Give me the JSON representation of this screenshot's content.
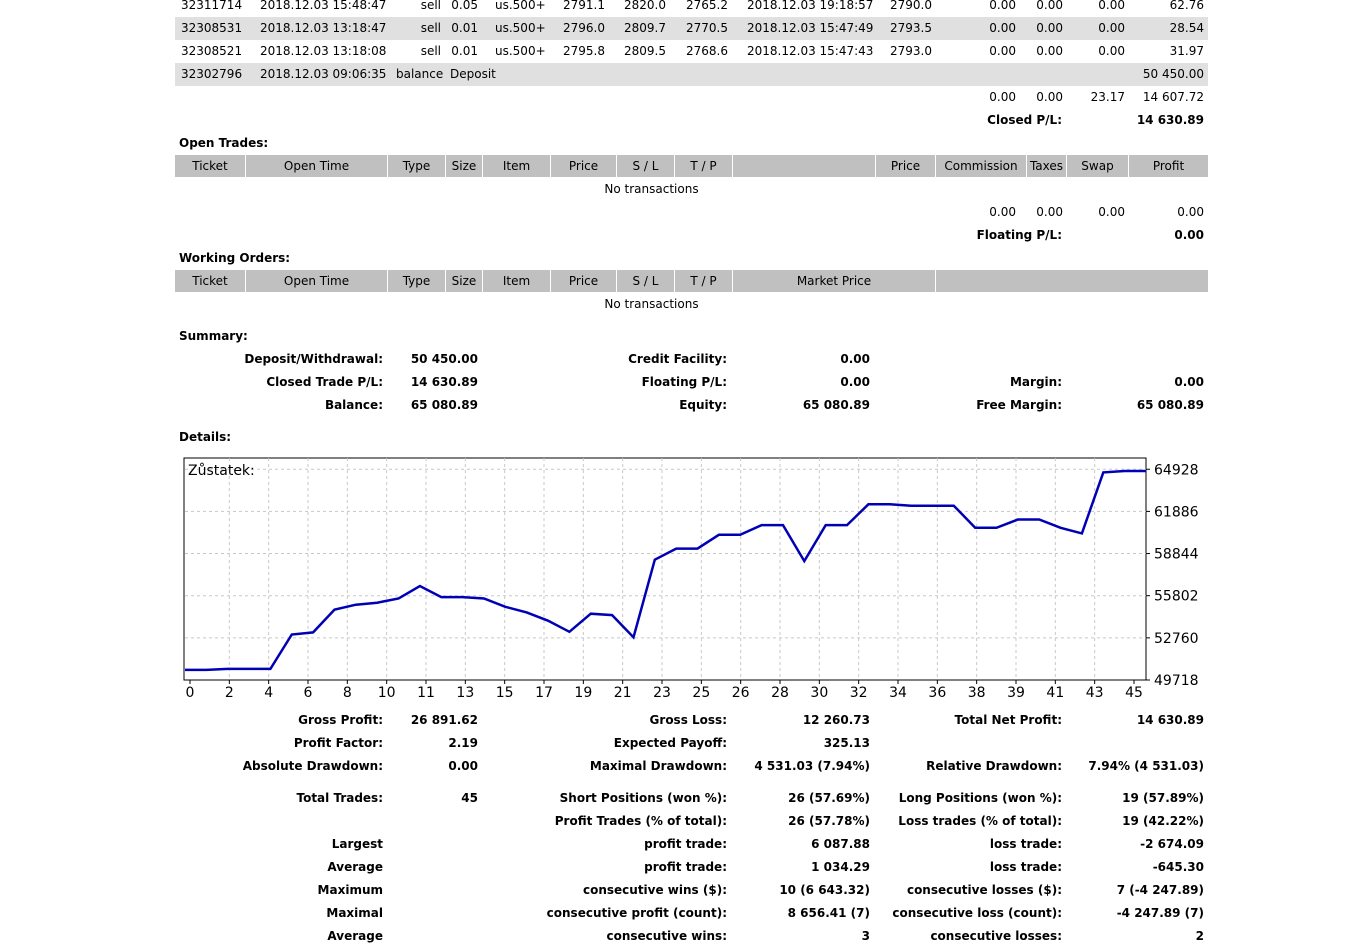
{
  "closed_rows": [
    [
      "32311714",
      "2018.12.03 15:48:47",
      "sell",
      "0.05",
      "us.500+",
      "2791.1",
      "2820.0",
      "2765.2",
      "2018.12.03 19:18:57",
      "2790.0",
      "0.00",
      "0.00",
      "0.00",
      "62.76"
    ],
    [
      "32308531",
      "2018.12.03 13:18:47",
      "sell",
      "0.01",
      "us.500+",
      "2796.0",
      "2809.7",
      "2770.5",
      "2018.12.03 15:47:49",
      "2793.5",
      "0.00",
      "0.00",
      "0.00",
      "28.54"
    ],
    [
      "32308521",
      "2018.12.03 13:18:08",
      "sell",
      "0.01",
      "us.500+",
      "2795.8",
      "2809.5",
      "2768.6",
      "2018.12.03 15:47:43",
      "2793.0",
      "0.00",
      "0.00",
      "0.00",
      "31.97"
    ]
  ],
  "deposit_row": {
    "ticket": "32302796",
    "time": "2018.12.03 09:06:35",
    "type": "balance",
    "item": "Deposit",
    "profit": "50 450.00"
  },
  "closed_totals": {
    "commission": "0.00",
    "taxes": "0.00",
    "swap": "23.17",
    "profit": "14 607.72",
    "pl_label": "Closed P/L:",
    "pl_value": "14 630.89"
  },
  "open_trades": {
    "title": "Open Trades:",
    "headers": [
      "Ticket",
      "Open Time",
      "Type",
      "Size",
      "Item",
      "Price",
      "S / L",
      "T / P",
      "",
      "Price",
      "Commission",
      "Taxes",
      "Swap",
      "Profit"
    ],
    "empty": "No transactions",
    "totals": {
      "commission": "0.00",
      "taxes": "0.00",
      "swap": "0.00",
      "profit": "0.00"
    },
    "pl_label": "Floating P/L:",
    "pl_value": "0.00"
  },
  "working_orders": {
    "title": "Working Orders:",
    "headers": [
      "Ticket",
      "Open Time",
      "Type",
      "Size",
      "Item",
      "Price",
      "S / L",
      "T / P",
      "Market Price",
      ""
    ],
    "empty": "No transactions"
  },
  "summary": {
    "title": "Summary:",
    "deposit_label": "Deposit/Withdrawal:",
    "deposit": "50 450.00",
    "credit_label": "Credit Facility:",
    "credit": "0.00",
    "closed_label": "Closed Trade P/L:",
    "closed": "14 630.89",
    "floating_label": "Floating P/L:",
    "floating": "0.00",
    "margin_label": "Margin:",
    "margin": "0.00",
    "balance_label": "Balance:",
    "balance": "65 080.89",
    "equity_label": "Equity:",
    "equity": "65 080.89",
    "free_margin_label": "Free Margin:",
    "free_margin": "65 080.89"
  },
  "details_title": "Details:",
  "chart_data": {
    "type": "line",
    "title": "Zůstatek:",
    "x_ticks": [
      "0",
      "2",
      "4",
      "6",
      "8",
      "10",
      "11",
      "13",
      "15",
      "17",
      "19",
      "21",
      "23",
      "25",
      "26",
      "28",
      "30",
      "32",
      "34",
      "36",
      "38",
      "39",
      "41",
      "43",
      "45"
    ],
    "y_ticks": [
      "64928",
      "61886",
      "58844",
      "55802",
      "52760",
      "49718"
    ],
    "ylim": [
      49718,
      65740
    ],
    "series": [
      {
        "values": [
          50450,
          50450,
          50520,
          50520,
          50520,
          53000,
          53150,
          54800,
          55150,
          55300,
          55600,
          56500,
          55700,
          55700,
          55600,
          55000,
          54600,
          54000,
          53200,
          54500,
          54400,
          52800,
          58400,
          59200,
          59200,
          60200,
          60200,
          60900,
          60900,
          58300,
          60900,
          60900,
          62400,
          62400,
          62300,
          62300,
          62300,
          60700,
          60700,
          61300,
          61300,
          60700,
          60300,
          64700,
          64800,
          64800
        ]
      }
    ],
    "line_color": "#0000b4",
    "grid": true
  },
  "stats": {
    "gross_profit_label": "Gross Profit:",
    "gross_profit": "26 891.62",
    "gross_loss_label": "Gross Loss:",
    "gross_loss": "12 260.73",
    "total_net_label": "Total Net Profit:",
    "total_net": "14 630.89",
    "profit_factor_label": "Profit Factor:",
    "profit_factor": "2.19",
    "expected_payoff_label": "Expected Payoff:",
    "expected_payoff": "325.13",
    "abs_dd_label": "Absolute Drawdown:",
    "abs_dd": "0.00",
    "max_dd_label": "Maximal Drawdown:",
    "max_dd": "4 531.03 (7.94%)",
    "rel_dd_label": "Relative Drawdown:",
    "rel_dd": "7.94% (4 531.03)",
    "total_trades_label": "Total Trades:",
    "total_trades": "45",
    "short_label": "Short Positions (won %):",
    "short": "26 (57.69%)",
    "long_label": "Long Positions (won %):",
    "long": "19 (57.89%)",
    "profit_trades_label": "Profit Trades (% of total):",
    "profit_trades": "26 (57.78%)",
    "loss_trades_label": "Loss trades (% of total):",
    "loss_trades": "19 (42.22%)",
    "largest_label": "Largest",
    "largest_profit_label": "profit trade:",
    "largest_profit": "6 087.88",
    "largest_loss_label": "loss trade:",
    "largest_loss": "-2 674.09",
    "average_label": "Average",
    "average_profit_label": "profit trade:",
    "average_profit": "1 034.29",
    "average_loss_label": "loss trade:",
    "average_loss": "-645.30",
    "maximum_label": "Maximum",
    "max_cons_wins_label": "consecutive wins ($):",
    "max_cons_wins": "10 (6 643.32)",
    "max_cons_losses_label": "consecutive losses ($):",
    "max_cons_losses": "7 (-4 247.89)",
    "maximal_label": "Maximal",
    "maximal_cons_profit_label": "consecutive profit (count):",
    "maximal_cons_profit": "8 656.41 (7)",
    "maximal_cons_loss_label": "consecutive loss (count):",
    "maximal_cons_loss": "-4 247.89 (7)",
    "average2_label": "Average",
    "avg_cons_wins_label": "consecutive wins:",
    "avg_cons_wins": "3",
    "avg_cons_losses_label": "consecutive losses:",
    "avg_cons_losses": "2"
  }
}
